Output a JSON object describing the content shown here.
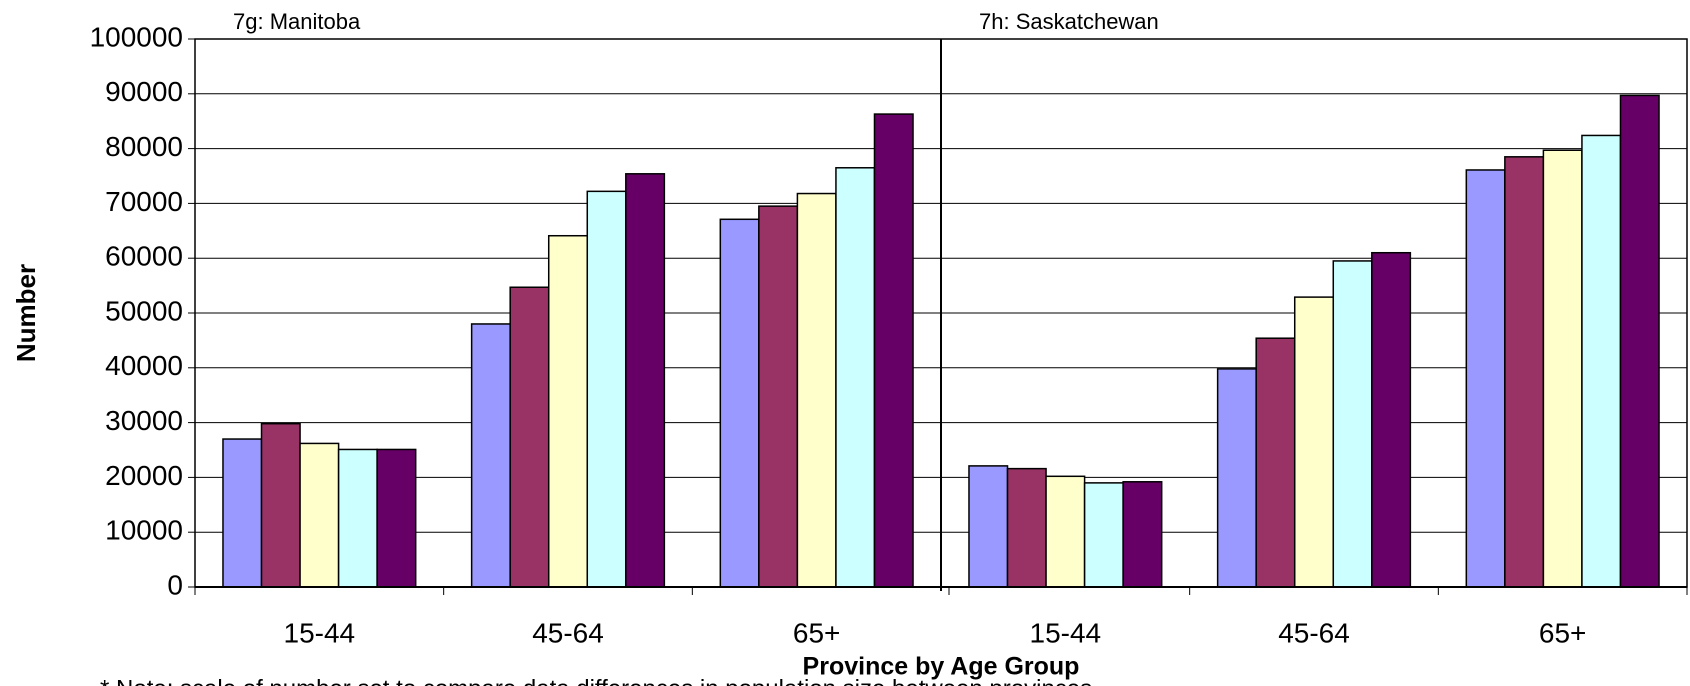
{
  "chart_data": {
    "type": "bar",
    "y_label": "Number",
    "x_label": "Province by Age Group",
    "note": "* Note: scale of number set to compare data differences in population size between provinces",
    "ylim": [
      0,
      100000
    ],
    "yticks": [
      0,
      10000,
      20000,
      30000,
      40000,
      50000,
      60000,
      70000,
      80000,
      90000,
      100000
    ],
    "grid": true,
    "panels": [
      {
        "title": "7g: Manitoba",
        "categories": [
          "15-44",
          "45-64",
          "65+"
        ],
        "series": [
          {
            "color": "#9999ff",
            "values": [
              27000,
              48000,
              67100
            ]
          },
          {
            "color": "#993366",
            "values": [
              29800,
              54700,
              69500
            ]
          },
          {
            "color": "#ffffcc",
            "values": [
              26200,
              64100,
              71800
            ]
          },
          {
            "color": "#ccffff",
            "values": [
              25100,
              72200,
              76500
            ]
          },
          {
            "color": "#660066",
            "values": [
              25100,
              75400,
              86300
            ]
          }
        ]
      },
      {
        "title": "7h: Saskatchewan",
        "categories": [
          "15-44",
          "45-64",
          "65+"
        ],
        "series": [
          {
            "color": "#9999ff",
            "values": [
              22100,
              39800,
              76100
            ]
          },
          {
            "color": "#993366",
            "values": [
              21600,
              45400,
              78500
            ]
          },
          {
            "color": "#ffffcc",
            "values": [
              20200,
              52900,
              79700
            ]
          },
          {
            "color": "#ccffff",
            "values": [
              19000,
              59500,
              82400
            ]
          },
          {
            "color": "#660066",
            "values": [
              19200,
              61000,
              89700
            ]
          }
        ]
      }
    ]
  }
}
